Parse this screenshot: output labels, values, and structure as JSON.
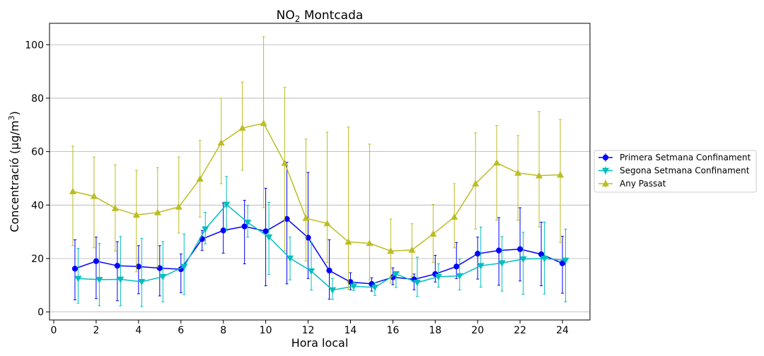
{
  "chart_data": {
    "type": "line",
    "title": "NO",
    "title_sub": "2",
    "title_rest": " Montcada",
    "xlabel": "Hora local",
    "ylabel": "Concentració (µg/m",
    "ylabel_sup": "3",
    "ylabel_close": ")",
    "xlim": [
      -0.2,
      25.3
    ],
    "ylim": [
      -3,
      108
    ],
    "xticks": [
      0,
      2,
      4,
      6,
      8,
      10,
      12,
      14,
      16,
      18,
      20,
      22,
      24
    ],
    "yticks": [
      0,
      20,
      40,
      60,
      80,
      100
    ],
    "grid": "horizontal",
    "legend_position": "right",
    "series": [
      {
        "name": "Primera Setmana Confinament",
        "color": "#0000ff",
        "marker": "circle",
        "x_offset": 0,
        "x": [
          1,
          2,
          3,
          4,
          5,
          6,
          7,
          8,
          9,
          10,
          11,
          12,
          13,
          14,
          15,
          16,
          17,
          18,
          19,
          20,
          21,
          22,
          23,
          24
        ],
        "values": [
          16.2,
          19.0,
          17.3,
          17.0,
          16.4,
          16.0,
          27.3,
          30.5,
          32.0,
          30.2,
          34.8,
          27.8,
          15.5,
          11.2,
          10.5,
          13.0,
          12.2,
          14.2,
          17.0,
          21.8,
          23.0,
          23.5,
          21.6,
          18.2
        ],
        "err_low": [
          4.5,
          5.0,
          4.2,
          6.8,
          6.0,
          7.2,
          23.0,
          22.0,
          18.0,
          9.8,
          10.5,
          12.5,
          4.8,
          8.3,
          7.8,
          10.2,
          8.3,
          11.2,
          12.5,
          12.3,
          10.0,
          11.6,
          9.8,
          7.0
        ],
        "err_high": [
          27.0,
          28.0,
          26.3,
          24.8,
          24.8,
          21.7,
          30.5,
          40.8,
          41.8,
          46.3,
          56.0,
          52.2,
          27.0,
          14.7,
          12.8,
          16.5,
          14.2,
          21.2,
          26.0,
          28.0,
          35.3,
          39.0,
          33.6,
          28.3
        ]
      },
      {
        "name": "Segona Setmana Confinament",
        "color": "#00bebe",
        "marker": "triangle-down",
        "x_offset": 0.15,
        "x": [
          1,
          2,
          3,
          4,
          5,
          6,
          7,
          8,
          9,
          10,
          11,
          12,
          13,
          14,
          15,
          16,
          17,
          18,
          19,
          20,
          21,
          22,
          23,
          24
        ],
        "values": [
          12.5,
          12.1,
          12.2,
          11.3,
          13.2,
          17.0,
          31.0,
          40.2,
          33.5,
          28.0,
          20.1,
          15.3,
          8.2,
          9.6,
          9.2,
          14.2,
          11.0,
          13.2,
          13.5,
          17.3,
          18.3,
          19.8,
          20.0,
          19.3
        ],
        "err_low": [
          3.3,
          2.3,
          2.3,
          2.0,
          3.8,
          6.5,
          25.5,
          30.5,
          28.0,
          14.0,
          12.0,
          8.2,
          4.7,
          8.0,
          6.2,
          9.2,
          5.8,
          9.3,
          8.2,
          9.3,
          7.8,
          6.6,
          6.7,
          3.8
        ],
        "err_high": [
          23.8,
          25.6,
          28.2,
          27.5,
          26.3,
          29.2,
          37.3,
          50.7,
          39.8,
          41.0,
          28.0,
          26.0,
          12.5,
          11.2,
          11.0,
          14.8,
          20.5,
          18.0,
          19.8,
          31.8,
          28.2,
          29.8,
          33.6,
          31.0
        ]
      },
      {
        "name": "Any Passat",
        "color": "#bcbd22",
        "marker": "triangle-up",
        "x_offset": -0.1,
        "x": [
          1,
          2,
          3,
          4,
          5,
          6,
          7,
          8,
          9,
          10,
          11,
          12,
          13,
          14,
          15,
          16,
          17,
          18,
          19,
          20,
          21,
          22,
          23,
          24
        ],
        "values": [
          45.1,
          43.3,
          38.8,
          36.3,
          37.2,
          39.3,
          49.8,
          63.3,
          68.8,
          70.6,
          55.7,
          35.1,
          33.1,
          26.2,
          25.7,
          22.8,
          23.2,
          29.2,
          35.5,
          48.0,
          55.8,
          52.0,
          51.0,
          51.3
        ],
        "err_low": [
          24.8,
          24.0,
          22.8,
          15.0,
          16.8,
          29.5,
          35.5,
          48.0,
          53.0,
          39.0,
          22.8,
          19.0,
          18.5,
          8.5,
          12.0,
          10.8,
          13.2,
          18.5,
          24.0,
          31.0,
          34.3,
          34.3,
          31.8,
          26.0
        ],
        "err_high": [
          62.0,
          58.0,
          55.0,
          53.0,
          54.0,
          58.0,
          64.2,
          80.0,
          86.0,
          103.0,
          84.0,
          64.7,
          67.3,
          69.2,
          62.8,
          34.8,
          33.0,
          40.2,
          48.0,
          67.0,
          69.8,
          66.0,
          75.0,
          72.0
        ]
      }
    ]
  }
}
